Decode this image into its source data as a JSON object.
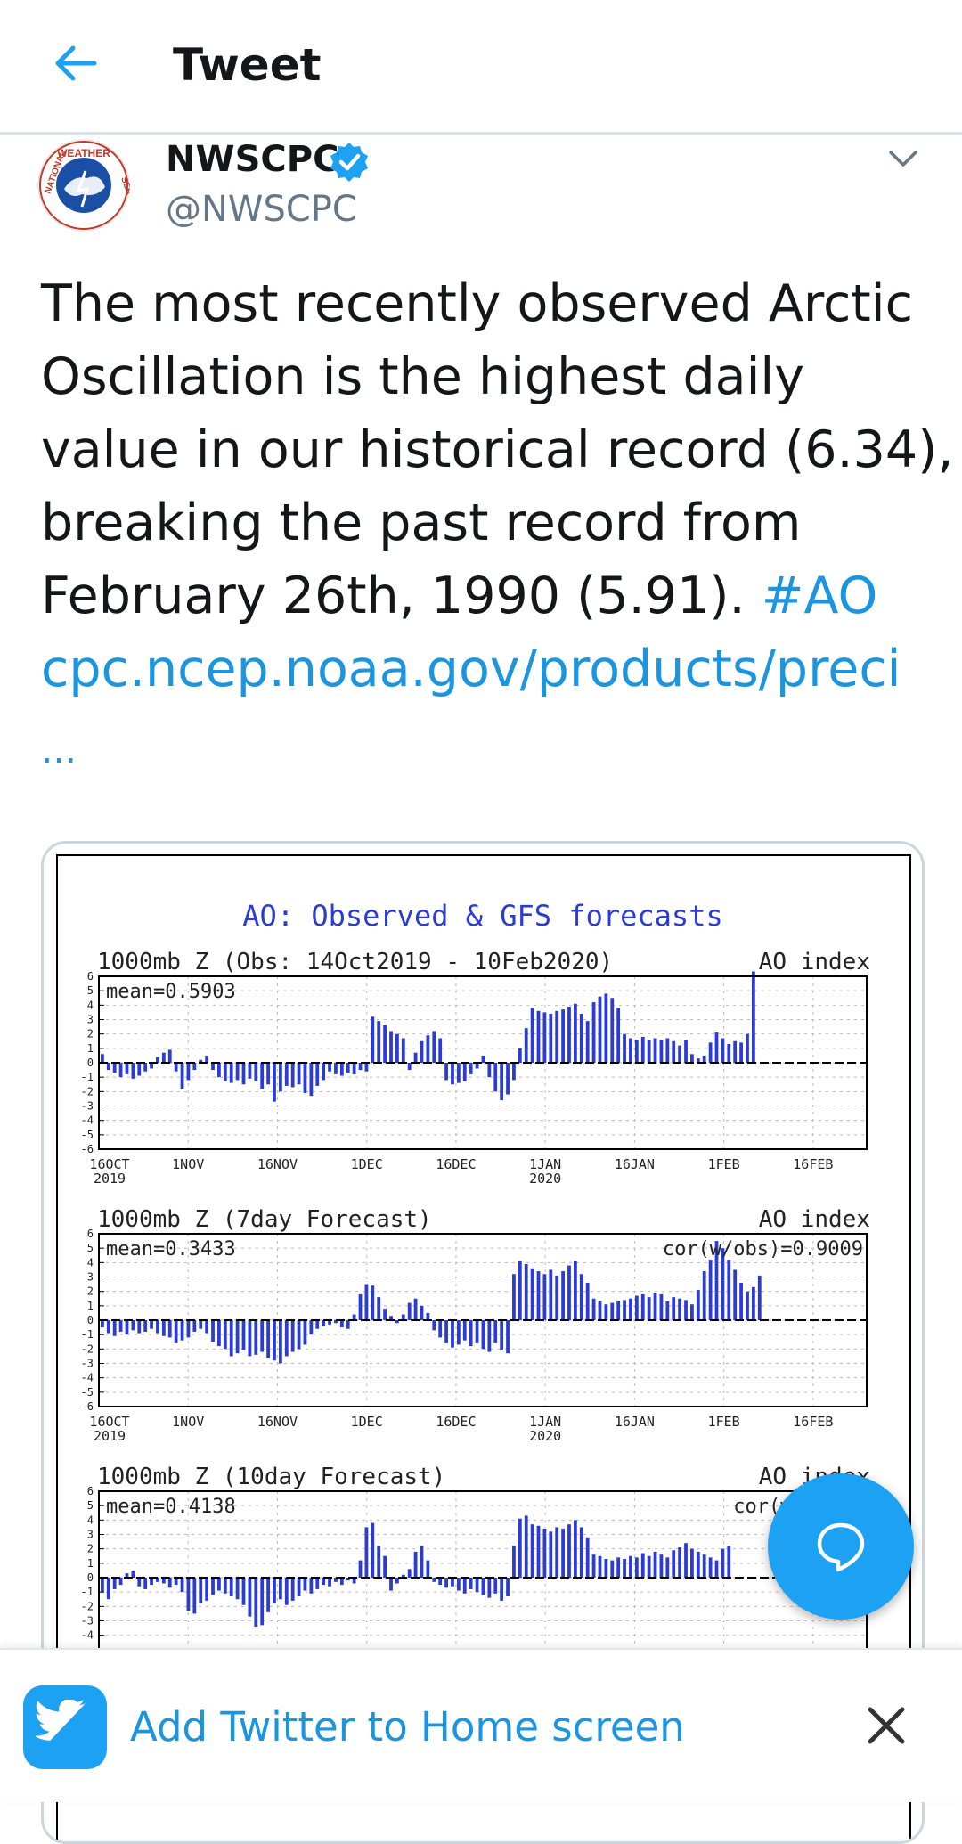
{
  "header": {
    "title": "Tweet",
    "back_icon": "arrow-left-icon"
  },
  "tweet": {
    "display_name": "NWSCPC",
    "handle": "@NWSCPC",
    "verified_icon": "verified-badge-icon",
    "more_icon": "chevron-down-icon",
    "avatar": {
      "top_text": "WEATHER",
      "left_text": "NATIONAL",
      "right_text": "SERVICE"
    },
    "text_lines": [
      "The most recently observed Arctic",
      "Oscillation is the highest daily",
      "value in our historical record (6.34),",
      "breaking the past record from",
      "February 26th, 1990 (5.91). "
    ],
    "hashtag": "#AO",
    "link": "cpc.ncep.noaa.gov/products/preci",
    "ellipsis": "…"
  },
  "colors": {
    "twitter_blue": "#1da1f2",
    "link_blue": "#1b95e0",
    "bar_blue": "#2b3bd6"
  },
  "chart_data": [
    {
      "type": "bar",
      "title": "AO: Observed & GFS forecasts",
      "subtitle": "1000mb Z (Obs: 14Oct2019 - 10Feb2020)",
      "right_label": "AO index",
      "annotation": "mean=0.5903",
      "ylim": [
        -6,
        6
      ],
      "yticks": [
        "6",
        "5",
        "4",
        "3",
        "2",
        "1",
        "0",
        "-1",
        "-2",
        "-3",
        "-4",
        "-5",
        "-6"
      ],
      "xticks": [
        "16OCT",
        "1NOV",
        "16NOV",
        "1DEC",
        "16DEC",
        "1JAN",
        "16JAN",
        "1FEB",
        "16FEB"
      ],
      "xtick_sub": [
        "2019",
        "",
        "",
        "",
        "",
        "2020",
        "",
        "",
        ""
      ],
      "values": [
        0.6,
        -0.5,
        -0.7,
        -1.0,
        -0.8,
        -1.1,
        -0.9,
        -0.6,
        -0.4,
        0.4,
        0.7,
        0.9,
        -0.6,
        -1.8,
        -1.2,
        -0.5,
        0.2,
        0.5,
        -0.5,
        -1.0,
        -1.3,
        -1.4,
        -1.2,
        -1.5,
        -1.1,
        -1.3,
        -1.8,
        -1.5,
        -2.7,
        -2.0,
        -1.6,
        -1.7,
        -1.5,
        -2.1,
        -2.3,
        -1.6,
        -1.2,
        -0.6,
        -0.8,
        -0.9,
        -0.7,
        -0.8,
        -0.5,
        -0.6,
        3.2,
        2.9,
        2.6,
        2.2,
        2.0,
        1.7,
        -0.5,
        0.7,
        1.5,
        1.9,
        2.2,
        1.7,
        -1.2,
        -1.5,
        -1.4,
        -1.3,
        -0.8,
        -0.4,
        0.5,
        -1.0,
        -2.0,
        -2.6,
        -2.2,
        -1.2,
        1.0,
        2.4,
        3.8,
        3.6,
        3.5,
        3.4,
        3.6,
        3.7,
        3.9,
        4.1,
        3.4,
        2.9,
        4.2,
        4.6,
        4.8,
        4.5,
        3.8,
        2.0,
        1.7,
        1.6,
        1.8,
        1.6,
        1.7,
        1.6,
        1.7,
        1.5,
        1.2,
        1.6,
        0.6,
        0.3,
        0.5,
        1.4,
        2.1,
        1.7,
        1.3,
        1.5,
        1.4,
        2.0,
        6.34
      ],
      "mark_xlim": [
        0,
        125
      ]
    },
    {
      "type": "bar",
      "subtitle": "1000mb Z (7day Forecast)",
      "right_label": "AO index",
      "annotation": "mean=0.3433",
      "correlation": "cor(w/obs)=0.9009",
      "ylim": [
        -6,
        6
      ],
      "yticks": [
        "6",
        "5",
        "4",
        "3",
        "2",
        "1",
        "0",
        "-1",
        "-2",
        "-3",
        "-4",
        "-5",
        "-6"
      ],
      "xticks": [
        "16OCT",
        "1NOV",
        "16NOV",
        "1DEC",
        "16DEC",
        "1JAN",
        "16JAN",
        "1FEB",
        "16FEB"
      ],
      "xtick_sub": [
        "2019",
        "",
        "",
        "",
        "",
        "2020",
        "",
        "",
        ""
      ],
      "values": [
        -0.5,
        -0.9,
        -1.1,
        -0.8,
        -1.0,
        -0.7,
        -0.9,
        -0.8,
        -0.6,
        -0.9,
        -1.1,
        -1.2,
        -1.6,
        -1.4,
        -1.2,
        -0.8,
        -0.6,
        -0.9,
        -1.5,
        -1.8,
        -2.0,
        -2.5,
        -2.3,
        -2.1,
        -2.5,
        -2.4,
        -2.2,
        -2.6,
        -2.8,
        -3.0,
        -2.5,
        -2.2,
        -2.0,
        -1.7,
        -1.0,
        -0.6,
        -0.4,
        -0.3,
        -0.2,
        -0.5,
        -0.6,
        0.4,
        1.8,
        2.5,
        2.4,
        1.6,
        0.8,
        0.3,
        -0.2,
        0.4,
        1.2,
        1.5,
        1.0,
        0.5,
        -0.7,
        -1.2,
        -1.6,
        -1.9,
        -1.7,
        -1.4,
        -1.8,
        -1.6,
        -2.0,
        -2.2,
        -1.6,
        -2.1,
        -2.3,
        3.2,
        4.1,
        3.9,
        3.6,
        3.4,
        3.2,
        3.5,
        3.1,
        3.4,
        3.8,
        4.1,
        3.2,
        2.6,
        1.5,
        1.3,
        1.1,
        1.2,
        1.3,
        1.4,
        1.5,
        1.7,
        1.8,
        1.6,
        1.9,
        1.8,
        1.3,
        1.6,
        1.5,
        1.4,
        1.1,
        2.1,
        3.4,
        4.2,
        5.5,
        5.0,
        4.2,
        3.5,
        2.6,
        2.0,
        2.3,
        3.1
      ],
      "mark_xlim": [
        0,
        125
      ]
    },
    {
      "type": "bar",
      "subtitle": "1000mb Z (10day Forecast)",
      "right_label": "AO index",
      "annotation": "mean=0.4138",
      "correlation": "cor(w/obs)=",
      "ylim": [
        -6,
        6
      ],
      "yticks": [
        "6",
        "5",
        "4",
        "3",
        "2",
        "1",
        "0",
        "-1",
        "-2",
        "-3",
        "-4"
      ],
      "values": [
        -1.0,
        -1.5,
        -0.8,
        -0.5,
        0.3,
        0.5,
        -0.6,
        -0.8,
        -0.5,
        -0.3,
        -0.4,
        -0.7,
        -0.5,
        -1.0,
        -2.3,
        -2.5,
        -1.8,
        -1.6,
        -1.2,
        -0.9,
        -1.1,
        -1.3,
        -1.5,
        -1.9,
        -2.7,
        -3.4,
        -3.3,
        -2.4,
        -1.8,
        -1.5,
        -1.9,
        -1.6,
        -1.3,
        -0.9,
        -1.1,
        -0.8,
        -0.5,
        -0.6,
        -0.3,
        -0.5,
        -0.2,
        -0.4,
        1.2,
        3.5,
        3.8,
        2.2,
        1.5,
        -0.9,
        -0.4,
        0.2,
        0.6,
        1.8,
        2.2,
        1.2,
        -0.3,
        -0.5,
        -0.7,
        -0.6,
        -0.9,
        -1.1,
        -0.8,
        -1.0,
        -1.2,
        -1.4,
        -1.1,
        -1.6,
        -1.3,
        2.2,
        4.1,
        4.3,
        3.7,
        3.6,
        3.4,
        3.2,
        3.5,
        3.4,
        3.7,
        4.0,
        3.5,
        2.8,
        1.6,
        1.5,
        1.3,
        1.2,
        1.4,
        1.3,
        1.5,
        1.4,
        1.7,
        1.5,
        1.8,
        1.6,
        1.4,
        1.9,
        2.1,
        2.4,
        2.0,
        1.8,
        1.6,
        1.4,
        1.2,
        2.0,
        2.2
      ],
      "mark_xlim": [
        0,
        125
      ]
    }
  ],
  "fab": {
    "icon": "compose-reply-icon"
  },
  "banner": {
    "logo_icon": "twitter-bird-icon",
    "text": "Add Twitter to Home screen",
    "close_icon": "close-x-icon"
  }
}
